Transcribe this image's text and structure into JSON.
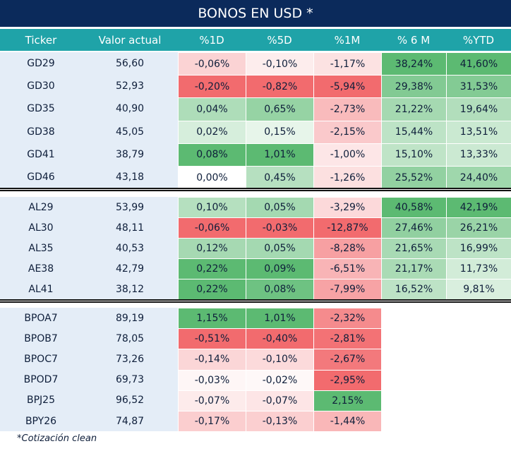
{
  "title": "BONOS EN USD *",
  "columns": [
    "Ticker",
    "Valor actual",
    "%1D",
    "%5D",
    "%1M",
    "% 6 M",
    "%YTD"
  ],
  "groups": [
    {
      "rows": [
        {
          "ticker": "GD29",
          "valor": "56,60",
          "d1": "-0,06%",
          "d5": "-0,10%",
          "m1": "-1,17%",
          "m6": "38,24%",
          "ytd": "41,60%"
        },
        {
          "ticker": "GD30",
          "valor": "52,93",
          "d1": "-0,20%",
          "d5": "-0,82%",
          "m1": "-5,94%",
          "m6": "29,38%",
          "ytd": "31,53%"
        },
        {
          "ticker": "GD35",
          "valor": "40,90",
          "d1": "0,04%",
          "d5": "0,65%",
          "m1": "-2,73%",
          "m6": "21,22%",
          "ytd": "19,64%"
        },
        {
          "ticker": "GD38",
          "valor": "45,05",
          "d1": "0,02%",
          "d5": "0,15%",
          "m1": "-2,15%",
          "m6": "15,44%",
          "ytd": "13,51%"
        },
        {
          "ticker": "GD41",
          "valor": "38,79",
          "d1": "0,08%",
          "d5": "1,01%",
          "m1": "-1,00%",
          "m6": "15,10%",
          "ytd": "13,33%"
        },
        {
          "ticker": "GD46",
          "valor": "43,18",
          "d1": "0,00%",
          "d5": "0,45%",
          "m1": "-1,26%",
          "m6": "25,52%",
          "ytd": "24,40%"
        }
      ]
    },
    {
      "rows": [
        {
          "ticker": "AL29",
          "valor": "53,99",
          "d1": "0,10%",
          "d5": "0,05%",
          "m1": "-3,29%",
          "m6": "40,58%",
          "ytd": "42,19%"
        },
        {
          "ticker": "AL30",
          "valor": "48,11",
          "d1": "-0,06%",
          "d5": "-0,03%",
          "m1": "-12,87%",
          "m6": "27,46%",
          "ytd": "26,21%"
        },
        {
          "ticker": "AL35",
          "valor": "40,53",
          "d1": "0,12%",
          "d5": "0,05%",
          "m1": "-8,28%",
          "m6": "21,65%",
          "ytd": "16,99%"
        },
        {
          "ticker": "AE38",
          "valor": "42,79",
          "d1": "0,22%",
          "d5": "0,09%",
          "m1": "-6,51%",
          "m6": "21,17%",
          "ytd": "11,73%"
        },
        {
          "ticker": "AL41",
          "valor": "38,12",
          "d1": "0,22%",
          "d5": "0,08%",
          "m1": "-7,99%",
          "m6": "16,52%",
          "ytd": "9,81%"
        }
      ]
    },
    {
      "rows": [
        {
          "ticker": "BPOA7",
          "valor": "89,19",
          "d1": "1,15%",
          "d5": "1,01%",
          "m1": "-2,32%",
          "m6": "",
          "ytd": ""
        },
        {
          "ticker": "BPOB7",
          "valor": "78,05",
          "d1": "-0,51%",
          "d5": "-0,40%",
          "m1": "-2,81%",
          "m6": "",
          "ytd": ""
        },
        {
          "ticker": "BPOC7",
          "valor": "73,26",
          "d1": "-0,14%",
          "d5": "-0,10%",
          "m1": "-2,67%",
          "m6": "",
          "ytd": ""
        },
        {
          "ticker": "BPOD7",
          "valor": "69,73",
          "d1": "-0,03%",
          "d5": "-0,02%",
          "m1": "-2,95%",
          "m6": "",
          "ytd": ""
        },
        {
          "ticker": "BPJ25",
          "valor": "96,52",
          "d1": "-0,07%",
          "d5": "-0,07%",
          "m1": "2,15%",
          "m6": "",
          "ytd": ""
        },
        {
          "ticker": "BPY26",
          "valor": "74,87",
          "d1": "-0,17%",
          "d5": "-0,13%",
          "m1": "-1,44%",
          "m6": "",
          "ytd": ""
        }
      ]
    }
  ],
  "footnote": "*Cotización clean",
  "colors": {
    "title_bg": "#0b2a5b",
    "header_bg": "#1fa3a8",
    "ticker_bg": "#e4edf7",
    "positive_max": "#5cba72",
    "negative_max": "#f26b6e"
  }
}
